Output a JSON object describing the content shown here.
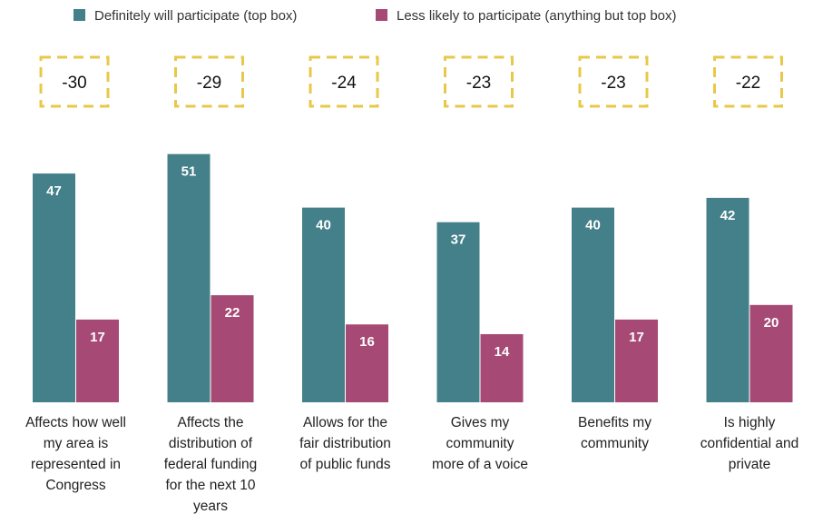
{
  "chart_data": {
    "type": "bar",
    "legend_position": "top",
    "grid": false,
    "ylim": [
      0,
      55
    ],
    "categories": [
      [
        "Affects how well",
        "my area is",
        "represented in",
        "Congress"
      ],
      [
        "Affects the",
        "distribution of",
        "federal funding",
        "for the next 10",
        "years"
      ],
      [
        "Allows for the",
        "fair distribution",
        "of public funds"
      ],
      [
        "Gives my",
        "community",
        "more of a voice"
      ],
      [
        "Benefits my",
        "community"
      ],
      [
        "Is highly",
        "confidential and",
        "private"
      ]
    ],
    "series": [
      {
        "name": "Definitely will participate (top box)",
        "color": "#44808a",
        "values": [
          47,
          51,
          40,
          37,
          40,
          42
        ]
      },
      {
        "name": "Less likely to participate (anything but top box)",
        "color": "#a64a75",
        "values": [
          17,
          22,
          16,
          14,
          17,
          20
        ]
      }
    ],
    "differences": [
      "-30",
      "-29",
      "-24",
      "-23",
      "-23",
      "-22"
    ],
    "difference_box_color": "#e8c84a"
  }
}
